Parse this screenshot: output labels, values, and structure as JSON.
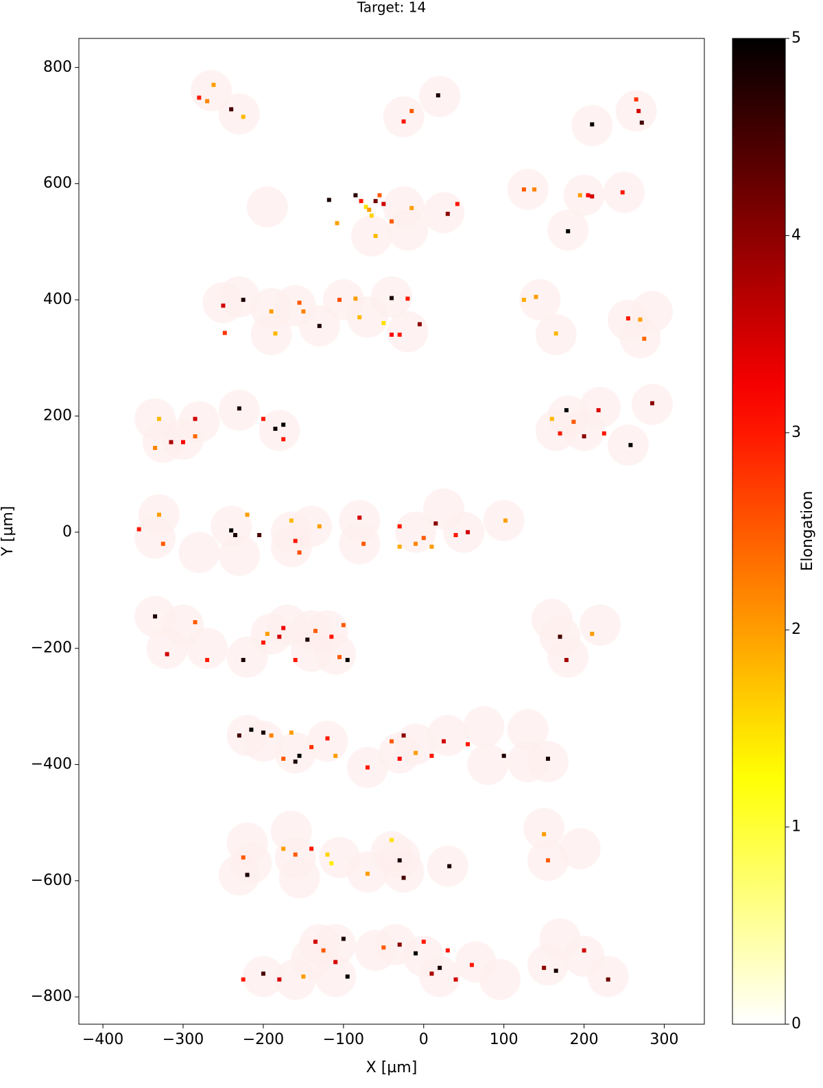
{
  "chart_data": {
    "type": "scatter",
    "title": "Target: 14",
    "xlabel": "X [µm]",
    "ylabel": "Y [µm]",
    "colorbar_label": "Elongation",
    "colormap": "hot_r",
    "clim": [
      0,
      5
    ],
    "cticks": [
      0,
      1,
      2,
      3,
      4,
      5
    ],
    "xlim": [
      -430,
      350
    ],
    "ylim": [
      -847,
      850
    ],
    "xticks": [
      {
        "value": -400,
        "label": "−400"
      },
      {
        "value": -300,
        "label": "−300"
      },
      {
        "value": -200,
        "label": "−200"
      },
      {
        "value": -100,
        "label": "−100"
      },
      0,
      100,
      200,
      300
    ],
    "yticks": [
      {
        "value": -800,
        "label": "−800"
      },
      {
        "value": -600,
        "label": "−600"
      },
      {
        "value": -400,
        "label": "−400"
      },
      {
        "value": -200,
        "label": "−200"
      },
      0,
      200,
      400,
      600,
      800
    ],
    "circle_color": "#fdeeec",
    "circles": {
      "x": [
        -265,
        -230,
        -25,
        20,
        210,
        265,
        -195,
        -65,
        -25,
        -20,
        25,
        130,
        180,
        200,
        250,
        -250,
        -230,
        -190,
        -190,
        -160,
        -130,
        -100,
        -70,
        -40,
        -20,
        145,
        165,
        255,
        270,
        285,
        -335,
        -325,
        -300,
        -280,
        -230,
        -180,
        165,
        180,
        200,
        220,
        255,
        285,
        -330,
        -335,
        -280,
        -240,
        -230,
        -165,
        -165,
        -140,
        -80,
        -80,
        -10,
        25,
        50,
        100,
        -335,
        -320,
        -300,
        -270,
        -220,
        -190,
        -170,
        -140,
        -140,
        -120,
        -110,
        160,
        170,
        180,
        220,
        -220,
        -200,
        -160,
        -120,
        -70,
        -30,
        -10,
        30,
        75,
        80,
        130,
        130,
        155,
        -220,
        -230,
        -215,
        -165,
        -160,
        -155,
        -105,
        -70,
        -40,
        -30,
        -25,
        30,
        150,
        155,
        195,
        -200,
        -160,
        -140,
        -130,
        -110,
        -110,
        -60,
        -35,
        0,
        20,
        65,
        95,
        155,
        170,
        200,
        230
      ],
      "y": [
        760,
        720,
        715,
        750,
        700,
        725,
        560,
        510,
        560,
        520,
        550,
        590,
        520,
        580,
        585,
        395,
        405,
        385,
        340,
        390,
        355,
        400,
        370,
        405,
        345,
        400,
        340,
        365,
        335,
        380,
        195,
        155,
        160,
        190,
        210,
        175,
        175,
        200,
        175,
        215,
        150,
        220,
        30,
        -10,
        -35,
        10,
        -40,
        0,
        -25,
        10,
        20,
        -20,
        0,
        40,
        0,
        20,
        -145,
        -200,
        -160,
        -200,
        -215,
        -175,
        -160,
        -170,
        -205,
        -170,
        -210,
        -150,
        -180,
        -215,
        -160,
        -350,
        -360,
        -380,
        -360,
        -405,
        -380,
        -365,
        -350,
        -335,
        -400,
        -395,
        -340,
        -395,
        -535,
        -590,
        -570,
        -515,
        -560,
        -595,
        -560,
        -585,
        -550,
        -560,
        -585,
        -575,
        -510,
        -565,
        -545,
        -765,
        -770,
        -735,
        -710,
        -765,
        -710,
        -720,
        -710,
        -730,
        -765,
        -740,
        -770,
        -745,
        -700,
        -730,
        -765
      ]
    },
    "particles": {
      "x": [
        -280,
        -270,
        -262,
        -240,
        -225,
        -25,
        -15,
        18,
        210,
        265,
        268,
        272,
        -118,
        -108,
        -85,
        -78,
        -72,
        -68,
        -60,
        -55,
        -50,
        -65,
        -40,
        -15,
        30,
        42,
        -60,
        125,
        138,
        180,
        195,
        205,
        210,
        248,
        -250,
        -248,
        -225,
        -190,
        -185,
        -155,
        -150,
        -130,
        -105,
        -85,
        -80,
        -50,
        -40,
        -30,
        -40,
        -20,
        -5,
        125,
        140,
        165,
        255,
        270,
        275,
        -330,
        -335,
        -315,
        -300,
        -285,
        -285,
        -230,
        -200,
        -185,
        -175,
        -175,
        160,
        170,
        178,
        187,
        200,
        218,
        225,
        258,
        285,
        -355,
        -330,
        -325,
        -240,
        -235,
        -220,
        -205,
        -165,
        -160,
        -155,
        -130,
        -80,
        -75,
        -30,
        -30,
        -10,
        0,
        10,
        15,
        40,
        55,
        102,
        -335,
        -320,
        -285,
        -270,
        -225,
        -200,
        -195,
        -180,
        -175,
        -160,
        -145,
        -135,
        -115,
        -105,
        -95,
        -100,
        170,
        178,
        210,
        -230,
        -215,
        -200,
        -190,
        -165,
        -175,
        -155,
        -160,
        -140,
        -120,
        -110,
        -70,
        -40,
        -30,
        -25,
        -10,
        10,
        25,
        55,
        100,
        155,
        -225,
        -220,
        -175,
        -160,
        -140,
        -120,
        -115,
        -70,
        -40,
        -30,
        -25,
        32,
        155,
        150,
        -225,
        -200,
        -180,
        -150,
        -135,
        -125,
        -110,
        -100,
        -95,
        -50,
        -30,
        -10,
        0,
        10,
        20,
        30,
        40,
        60,
        150,
        165,
        200,
        230
      ],
      "y": [
        748,
        742,
        770,
        728,
        715,
        707,
        725,
        752,
        702,
        745,
        725,
        705,
        572,
        532,
        580,
        570,
        560,
        555,
        570,
        580,
        565,
        545,
        535,
        558,
        548,
        565,
        510,
        590,
        590,
        518,
        580,
        580,
        578,
        585,
        390,
        343,
        400,
        380,
        342,
        395,
        380,
        355,
        400,
        402,
        370,
        360,
        340,
        340,
        403,
        402,
        358,
        400,
        405,
        342,
        368,
        366,
        333,
        195,
        145,
        155,
        155,
        195,
        165,
        213,
        195,
        178,
        185,
        160,
        195,
        170,
        210,
        190,
        165,
        210,
        170,
        150,
        222,
        5,
        30,
        -20,
        3,
        -5,
        30,
        -5,
        20,
        -15,
        -35,
        10,
        25,
        -20,
        10,
        -25,
        -20,
        -10,
        -25,
        15,
        -5,
        0,
        20,
        -145,
        -210,
        -155,
        -220,
        -220,
        -190,
        -175,
        -180,
        -165,
        -220,
        -185,
        -170,
        -180,
        -215,
        -220,
        -160,
        -180,
        -220,
        -175,
        -350,
        -340,
        -345,
        -350,
        -345,
        -390,
        -385,
        -395,
        -370,
        -355,
        -385,
        -405,
        -360,
        -390,
        -350,
        -380,
        -385,
        -360,
        -365,
        -385,
        -390,
        -560,
        -590,
        -545,
        -555,
        -545,
        -555,
        -570,
        -588,
        -530,
        -565,
        -595,
        -575,
        -565,
        -520,
        -770,
        -760,
        -770,
        -765,
        -705,
        -720,
        -740,
        -700,
        -765,
        -715,
        -710,
        -725,
        -705,
        -760,
        -750,
        -720,
        -770,
        -745,
        -750,
        -755,
        -720,
        -770
      ],
      "elongation": [
        3.0,
        2.2,
        2.0,
        4.5,
        1.8,
        3.0,
        2.5,
        4.8,
        5.0,
        2.8,
        3.5,
        4.5,
        4.8,
        2.0,
        4.7,
        3.0,
        1.5,
        2.0,
        4.2,
        2.5,
        3.5,
        1.6,
        2.5,
        2.0,
        4.0,
        3.0,
        1.8,
        2.5,
        2.2,
        5.0,
        2.0,
        3.2,
        3.5,
        3.0,
        3.5,
        2.8,
        4.8,
        2.0,
        1.8,
        2.5,
        2.2,
        4.8,
        2.6,
        2.0,
        1.8,
        1.5,
        3.2,
        3.0,
        4.8,
        3.0,
        4.0,
        1.9,
        2.0,
        1.8,
        3.0,
        2.0,
        2.4,
        1.8,
        2.2,
        3.8,
        3.2,
        3.5,
        2.4,
        4.8,
        3.0,
        4.9,
        5.0,
        3.0,
        1.8,
        3.0,
        5.0,
        2.5,
        4.0,
        3.4,
        3.0,
        5.0,
        4.0,
        3.0,
        2.0,
        2.5,
        5.0,
        4.8,
        2.0,
        4.5,
        1.8,
        3.0,
        2.6,
        2.0,
        3.5,
        2.5,
        3.0,
        1.9,
        2.2,
        2.5,
        2.0,
        4.0,
        3.0,
        3.5,
        2.0,
        4.8,
        3.5,
        2.5,
        3.0,
        4.8,
        3.0,
        2.0,
        3.5,
        3.3,
        3.0,
        4.8,
        2.5,
        3.0,
        2.5,
        5.0,
        2.5,
        4.5,
        3.8,
        2.0,
        4.5,
        5.0,
        4.8,
        2.2,
        2.0,
        2.5,
        5.0,
        4.8,
        2.8,
        3.0,
        2.0,
        3.0,
        2.5,
        3.2,
        4.0,
        2.0,
        3.0,
        3.5,
        3.0,
        4.8,
        4.8,
        2.5,
        4.8,
        2.0,
        2.5,
        3.0,
        1.6,
        1.4,
        2.0,
        1.5,
        4.8,
        4.5,
        4.8,
        2.5,
        2.0,
        3.0,
        4.5,
        3.5,
        2.0,
        3.5,
        2.5,
        3.5,
        4.8,
        5.0,
        2.5,
        4.0,
        5.0,
        3.0,
        3.8,
        4.8,
        3.0,
        3.5,
        3.0,
        4.0,
        4.8,
        3.5,
        4.2
      ]
    }
  }
}
